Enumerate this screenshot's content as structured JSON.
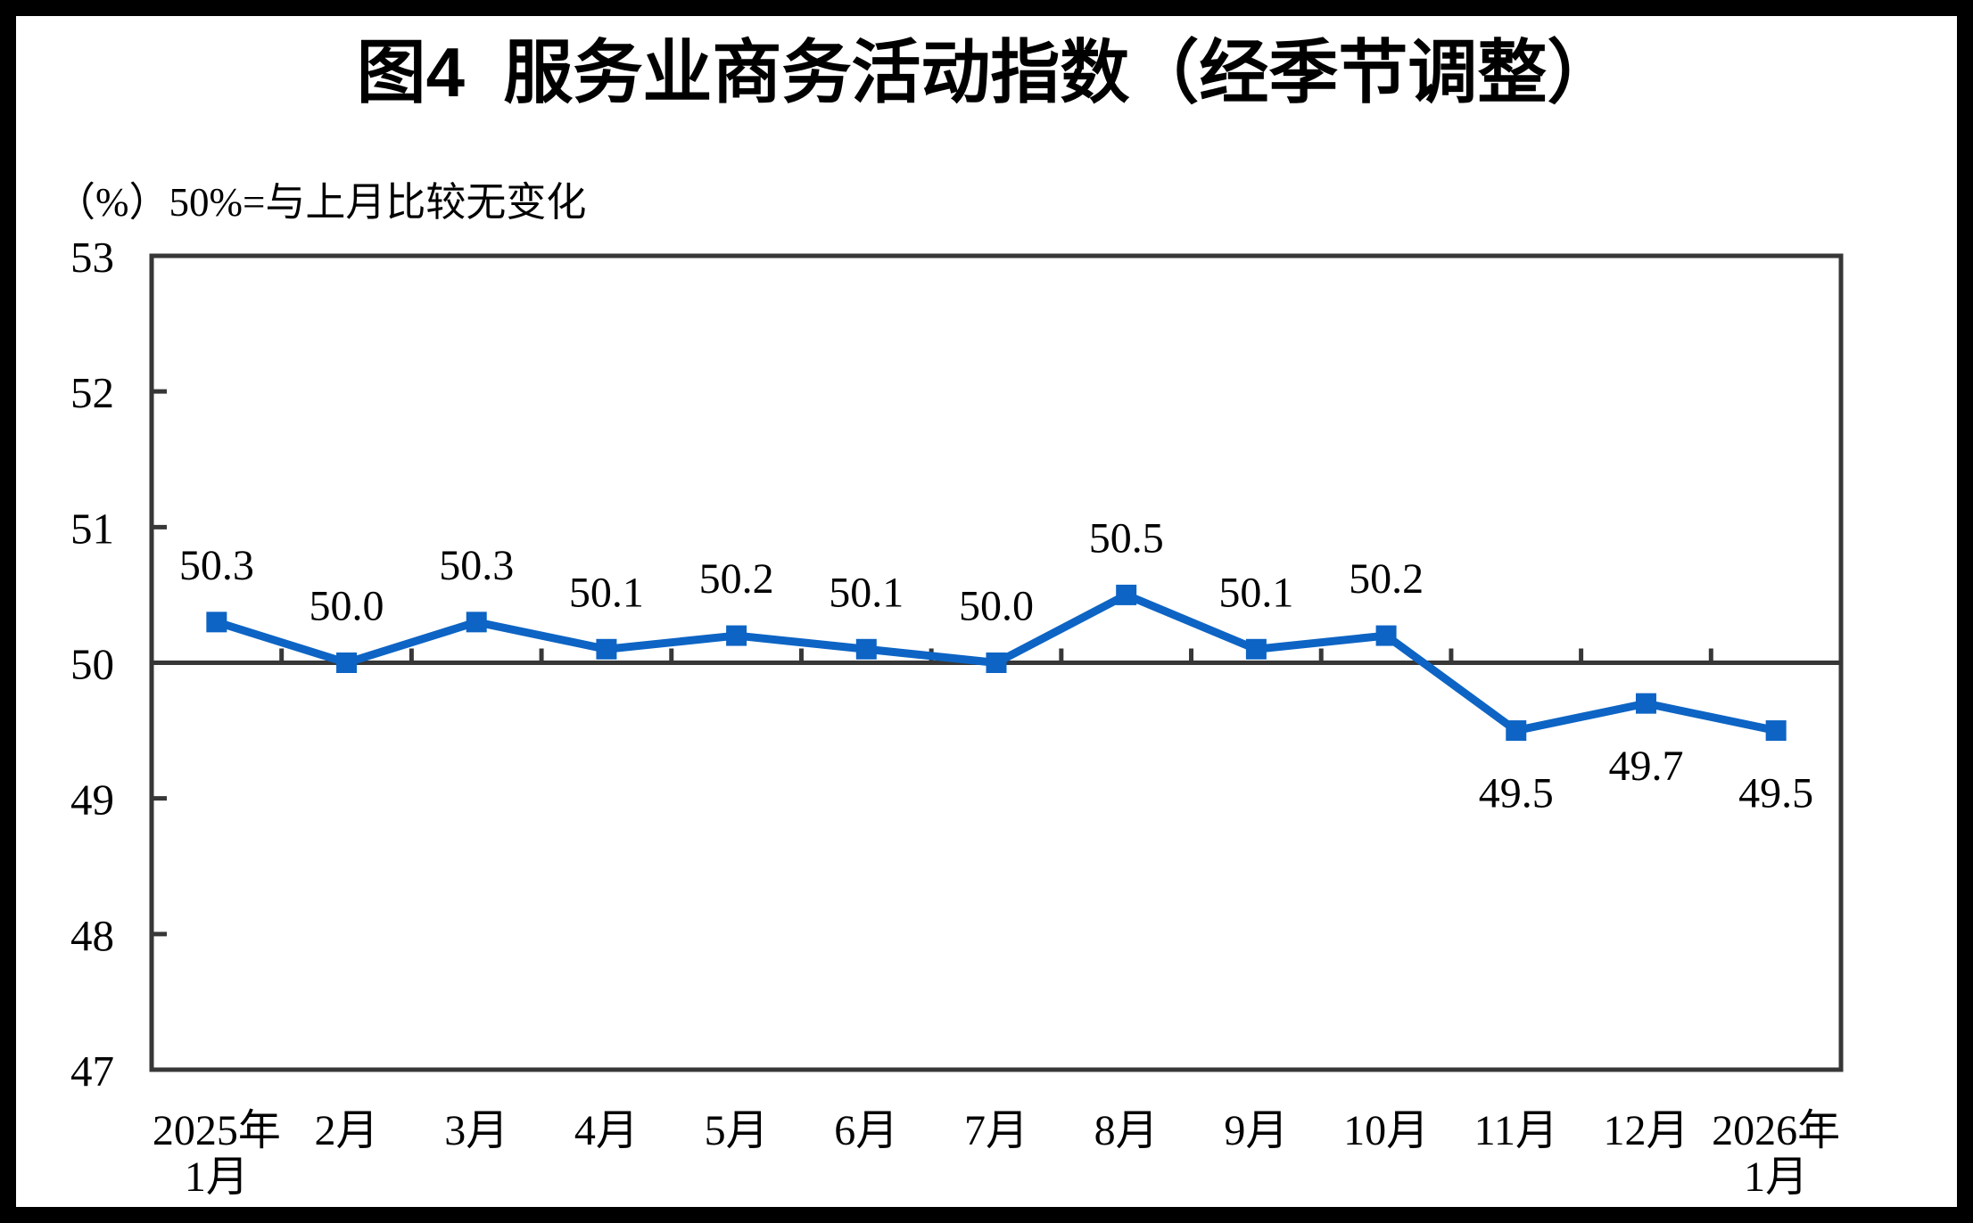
{
  "figure": {
    "title": "图4  服务业商务活动指数（经季节调整）",
    "subtitle": "（%）50%=与上月比较无变化"
  },
  "chart_data": {
    "type": "line",
    "title": "图4 服务业商务活动指数（经季节调整）",
    "unit_note": "（%）50%=与上月比较无变化",
    "categories": [
      "2025年1月",
      "2月",
      "3月",
      "4月",
      "5月",
      "6月",
      "7月",
      "8月",
      "9月",
      "10月",
      "11月",
      "12月",
      "2026年1月"
    ],
    "category_display_lines": [
      [
        "2025年",
        "1月"
      ],
      [
        "2月"
      ],
      [
        "3月"
      ],
      [
        "4月"
      ],
      [
        "5月"
      ],
      [
        "6月"
      ],
      [
        "7月"
      ],
      [
        "8月"
      ],
      [
        "9月"
      ],
      [
        "10月"
      ],
      [
        "11月"
      ],
      [
        "12月"
      ],
      [
        "2026年",
        "1月"
      ]
    ],
    "series": [
      {
        "name": "服务业商务活动指数（经季节调整）",
        "values": [
          50.3,
          50.0,
          50.3,
          50.1,
          50.2,
          50.1,
          50.0,
          50.5,
          50.1,
          50.2,
          49.5,
          49.7,
          49.5
        ]
      }
    ],
    "data_labels": [
      "50.3",
      "50.0",
      "50.3",
      "50.1",
      "50.2",
      "50.1",
      "50.0",
      "50.5",
      "50.1",
      "50.2",
      "49.5",
      "49.7",
      "49.5"
    ],
    "label_positions": [
      "above",
      "above",
      "above",
      "above",
      "above",
      "above",
      "above",
      "above",
      "above",
      "above",
      "below",
      "below",
      "below"
    ],
    "ylabel": "",
    "xlabel": "",
    "ylim": [
      47,
      53
    ],
    "yticks": [
      47,
      48,
      49,
      50,
      51,
      52,
      53
    ],
    "reference_line": 50,
    "grid": false,
    "legend_position": "none",
    "marker": "square",
    "colors": {
      "line": "#0D64C4",
      "axis": "#373737",
      "text": "#000000",
      "frame": "#000000",
      "background": "#FFFFFF"
    }
  }
}
